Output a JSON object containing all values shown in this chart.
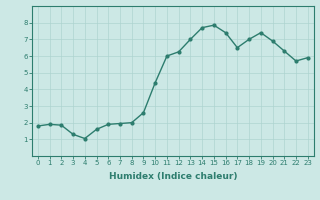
{
  "x": [
    0,
    1,
    2,
    3,
    4,
    5,
    6,
    7,
    8,
    9,
    10,
    11,
    12,
    13,
    14,
    15,
    16,
    17,
    18,
    19,
    20,
    21,
    22,
    23
  ],
  "y": [
    1.8,
    1.9,
    1.85,
    1.3,
    1.05,
    1.6,
    1.9,
    1.95,
    2.0,
    2.6,
    4.4,
    6.0,
    6.25,
    7.0,
    7.7,
    7.85,
    7.4,
    6.5,
    7.0,
    7.4,
    6.9,
    6.3,
    5.7,
    5.9
  ],
  "line_color": "#2d7d6e",
  "marker": "o",
  "marker_size": 2.0,
  "bg_color": "#cce8e5",
  "grid_color": "#aed4d0",
  "xlabel": "Humidex (Indice chaleur)",
  "xlabel_fontsize": 6.5,
  "ylim": [
    0,
    9
  ],
  "xlim": [
    -0.5,
    23.5
  ],
  "yticks": [
    1,
    2,
    3,
    4,
    5,
    6,
    7,
    8
  ],
  "xticks": [
    0,
    1,
    2,
    3,
    4,
    5,
    6,
    7,
    8,
    9,
    10,
    11,
    12,
    13,
    14,
    15,
    16,
    17,
    18,
    19,
    20,
    21,
    22,
    23
  ],
  "tick_color": "#2d7d6e",
  "tick_fontsize": 5.0,
  "line_width": 1.0,
  "spine_color": "#2d7d6e"
}
